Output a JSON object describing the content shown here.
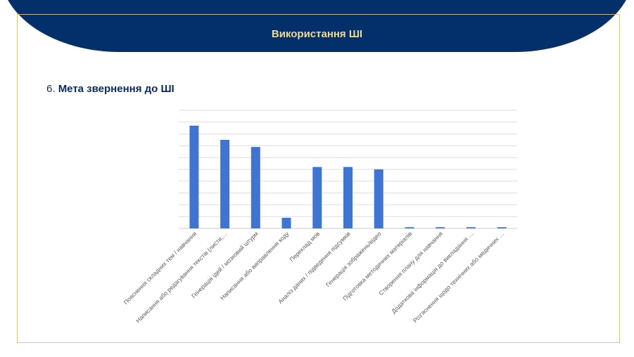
{
  "header": {
    "title": "Використання ШІ"
  },
  "section": {
    "number": "6.",
    "title": "Мета звернення до ШІ"
  },
  "colors": {
    "bar": "#3f74d1",
    "header": "#03306a",
    "gold": "#d9c58a"
  },
  "chart_data": {
    "type": "bar",
    "categories": [
      "Пояснення складних тем / навчання",
      "Написання або редагування текстів (листи,…",
      "Генерація ідей / мозковий штурм",
      "Написання або виправлення коду",
      "Переклад мов",
      "Аналіз даних / підведення підсумків",
      "Генерація зображень/відео",
      "Підготовка методичних матеріалів",
      "Створення плану для навчання",
      "Додаткова інформація до викладання …",
      "Роз'яснення щодо технічних або медичних …"
    ],
    "values": [
      87,
      75,
      69,
      9,
      52,
      52,
      50,
      1,
      1,
      1,
      1
    ],
    "ylim": [
      0,
      100
    ],
    "grid": true,
    "legend": "none"
  }
}
